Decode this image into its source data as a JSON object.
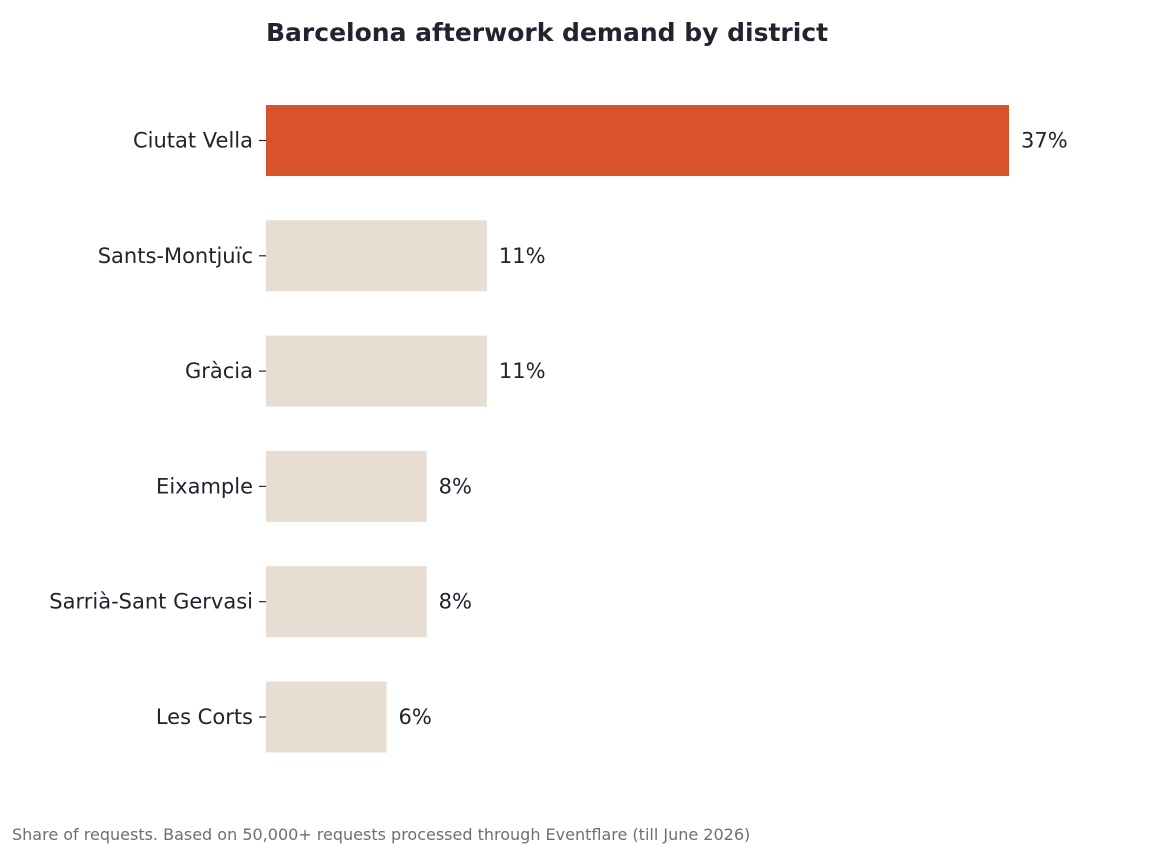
{
  "chart_data": {
    "type": "bar",
    "orientation": "horizontal",
    "title": "Barcelona afterwork demand by district",
    "xlabel": "",
    "ylabel": "",
    "xlim": [
      0,
      37
    ],
    "grid": false,
    "legend": "none",
    "categories": [
      "Ciutat Vella",
      "Sants-Montjuïc",
      "Gràcia",
      "Eixample",
      "Sarrià-Sant Gervasi",
      "Les Corts"
    ],
    "values": [
      37,
      11,
      11,
      8,
      8,
      6
    ],
    "value_labels": [
      "37%",
      "11%",
      "11%",
      "8%",
      "8%",
      "6%"
    ],
    "highlight_index": 0,
    "colors": {
      "highlight": "#d8532c",
      "default": "#e7ddd3",
      "text": "#22232f",
      "footnote": "#6e6e78"
    },
    "footnote": "Share of requests. Based on 50,000+ requests processed through Eventflare (till June 2026)"
  }
}
